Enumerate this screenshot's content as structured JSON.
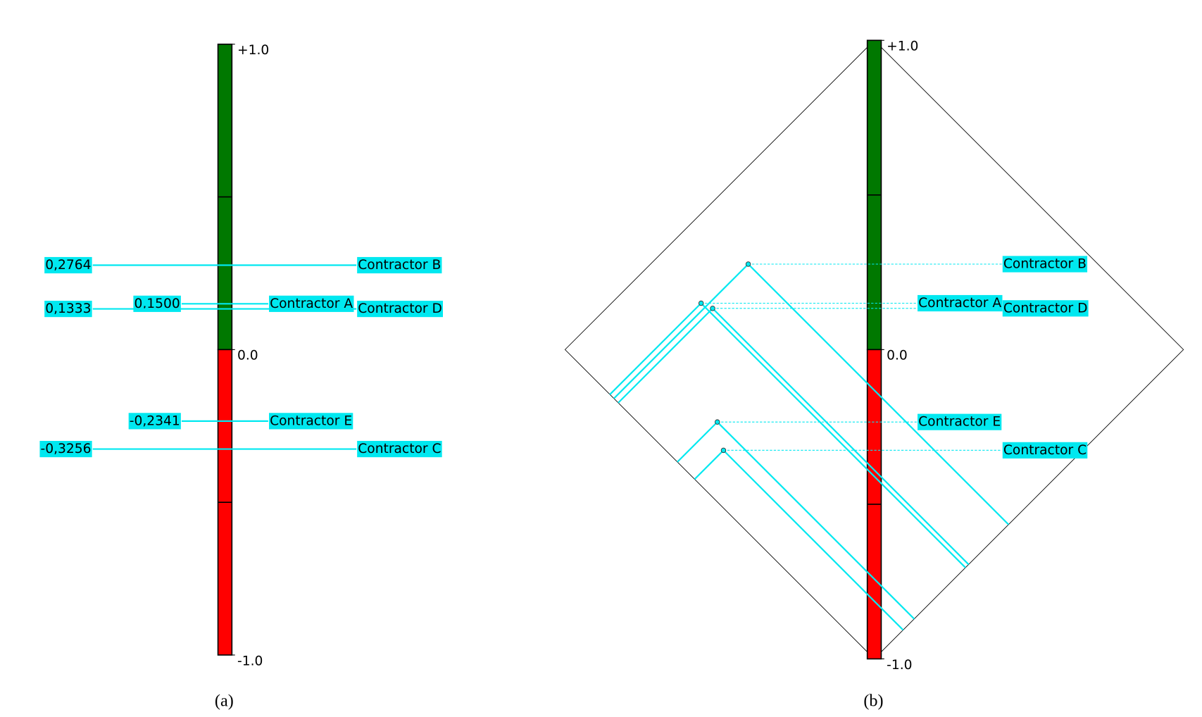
{
  "chart_data": [
    {
      "type": "ranking",
      "caption": "(a)",
      "categories": [
        "Contractor B",
        "Contractor A",
        "Contractor D",
        "Contractor E",
        "Contractor C"
      ],
      "values": [
        0.2764,
        0.15,
        0.1333,
        -0.2341,
        -0.3256
      ],
      "value_labels": [
        "0,2764",
        "0,1500",
        "0,1333",
        "-0,2341",
        "-0,3256"
      ],
      "ylim": [
        -1,
        1
      ],
      "yticks": [
        {
          "value": 1,
          "label": "+1.0"
        },
        {
          "value": 0,
          "label": "0.0"
        },
        {
          "value": -1,
          "label": "-1.0"
        }
      ],
      "positive_color": "#007800",
      "negative_color": "#ff0000",
      "label_color": "#00e8f0"
    },
    {
      "type": "diamond",
      "caption": "(b)",
      "categories": [
        "Contractor B",
        "Contractor A",
        "Contractor D",
        "Contractor E",
        "Contractor C"
      ],
      "phi_plus": [
        0.842,
        0.855,
        0.828,
        0.6367,
        0.581
      ],
      "phi_minus": [
        0.5656,
        0.705,
        0.6947,
        0.8708,
        0.9066
      ],
      "ylim": [
        -1,
        1
      ],
      "yticks": [
        {
          "value": 1,
          "label": "+1.0"
        },
        {
          "value": 0,
          "label": "0.0"
        },
        {
          "value": -1,
          "label": "-1.0"
        }
      ],
      "positive_color": "#007800",
      "negative_color": "#ff0000",
      "label_color": "#00e8f0"
    }
  ]
}
